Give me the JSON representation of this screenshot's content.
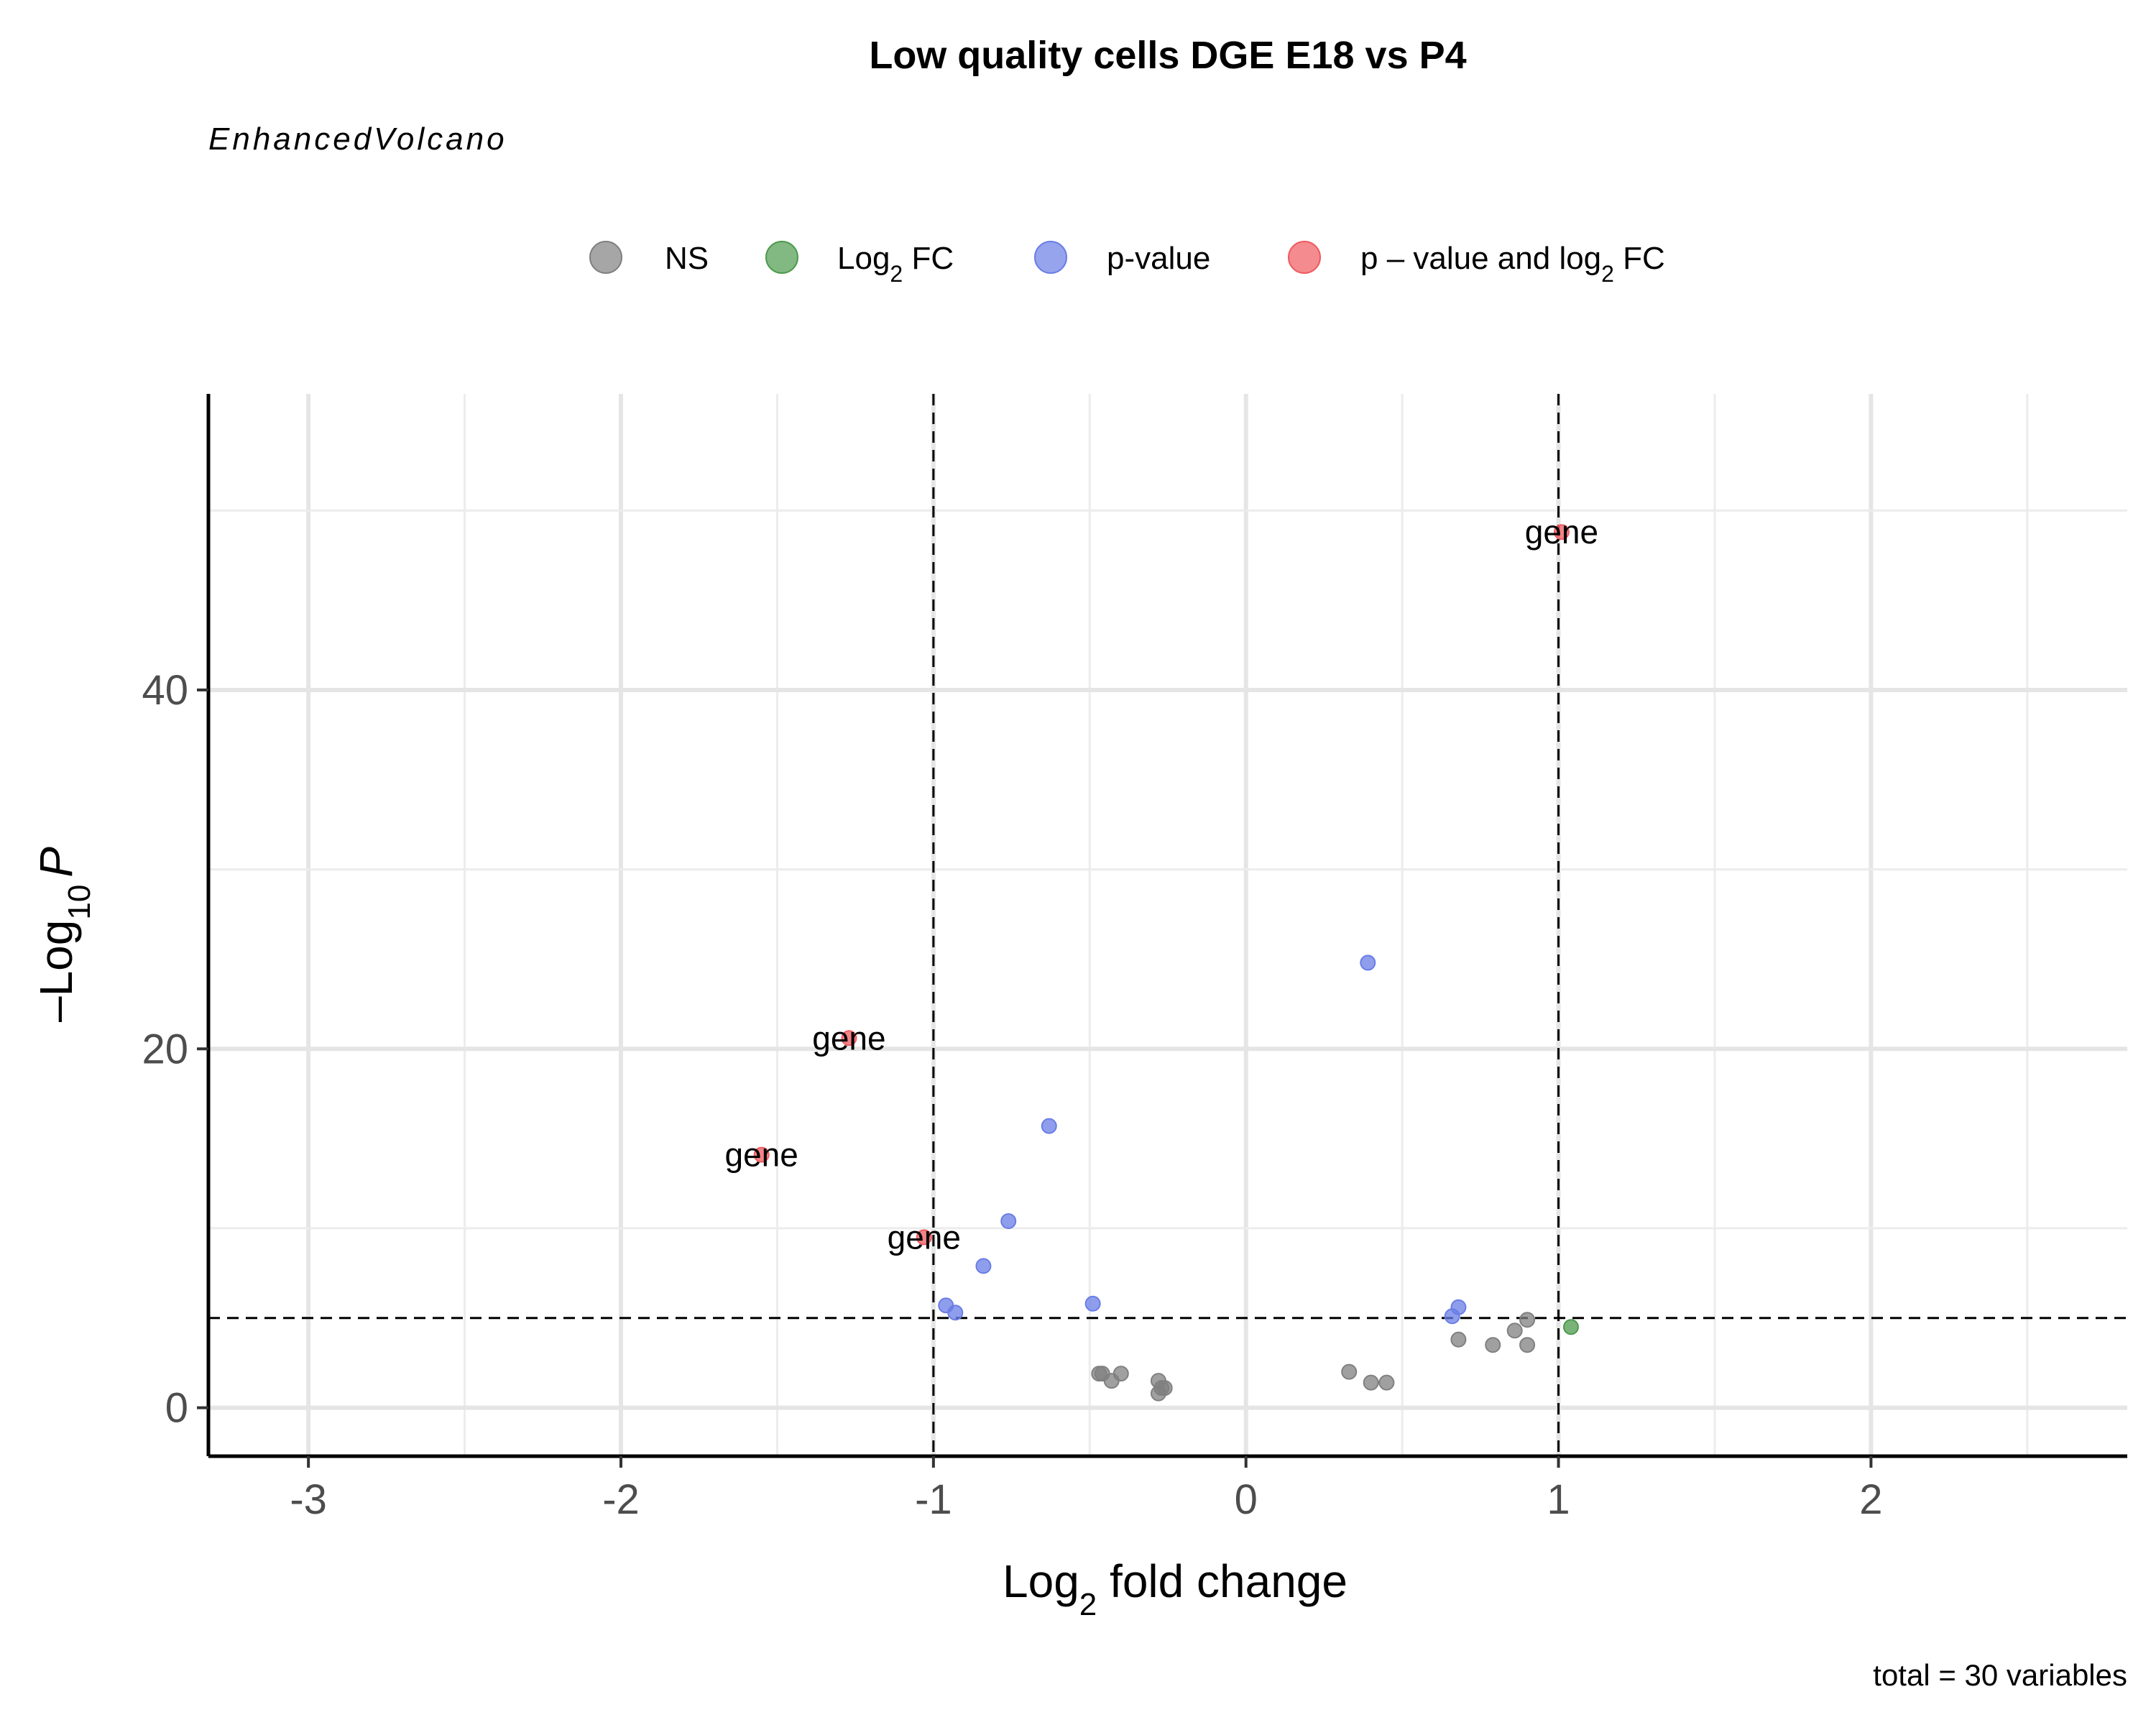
{
  "chart_data": {
    "type": "scatter",
    "title": "Low quality cells DGE E18 vs P4",
    "subtitle": "EnhancedVolcano",
    "caption": "total = 30 variables",
    "xlabel": {
      "prefix": "Log",
      "sub": "2",
      "suffix": " fold change"
    },
    "ylabel": {
      "prefix": "–Log",
      "sub": "10",
      "suffix": "P"
    },
    "xlim": [
      -3.32,
      2.82
    ],
    "ylim": [
      -2.7,
      56.5
    ],
    "x_ticks": [
      -3,
      -2,
      -1,
      0,
      1,
      2
    ],
    "x_tick_labels": [
      "-3",
      "-2",
      "-1",
      "0",
      "1",
      "2"
    ],
    "y_ticks": [
      0,
      20,
      40
    ],
    "y_tick_labels": [
      "0",
      "20",
      "40"
    ],
    "grid": true,
    "legend_position": "top",
    "thresholds": {
      "log2fc": [
        -1,
        1
      ],
      "neg_log10_p": 5
    },
    "legend": [
      {
        "key": "NS",
        "label_parts": [
          "NS"
        ],
        "color": "#808080"
      },
      {
        "key": "FC",
        "label_parts": [
          "Log",
          "2",
          " FC"
        ],
        "color": "#4d9a4d"
      },
      {
        "key": "P",
        "label_parts": [
          "p-value"
        ],
        "color": "#6a7de6"
      },
      {
        "key": "FCP",
        "label_parts": [
          "p – value and log",
          "2",
          " FC"
        ],
        "color": "#ef5a5f"
      }
    ],
    "points": [
      {
        "x": 1.01,
        "y": 48.8,
        "group": "FCP",
        "label": "gene"
      },
      {
        "x": -1.27,
        "y": 20.6,
        "group": "FCP",
        "label": "gene"
      },
      {
        "x": -1.55,
        "y": 14.1,
        "group": "FCP",
        "label": "gene"
      },
      {
        "x": -1.03,
        "y": 9.5,
        "group": "FCP",
        "label": "gene"
      },
      {
        "x": 0.39,
        "y": 24.8,
        "group": "P"
      },
      {
        "x": -0.63,
        "y": 15.7,
        "group": "P"
      },
      {
        "x": -0.76,
        "y": 10.4,
        "group": "P"
      },
      {
        "x": -0.84,
        "y": 7.9,
        "group": "P"
      },
      {
        "x": -0.96,
        "y": 5.7,
        "group": "P"
      },
      {
        "x": -0.93,
        "y": 5.3,
        "group": "P"
      },
      {
        "x": -0.49,
        "y": 5.8,
        "group": "P"
      },
      {
        "x": 0.68,
        "y": 5.6,
        "group": "P"
      },
      {
        "x": 0.66,
        "y": 5.1,
        "group": "P"
      },
      {
        "x": 1.04,
        "y": 4.5,
        "group": "FC"
      },
      {
        "x": 0.9,
        "y": 4.9,
        "group": "NS"
      },
      {
        "x": 0.86,
        "y": 4.3,
        "group": "NS"
      },
      {
        "x": 0.68,
        "y": 3.8,
        "group": "NS"
      },
      {
        "x": 0.79,
        "y": 3.5,
        "group": "NS"
      },
      {
        "x": 0.9,
        "y": 3.5,
        "group": "NS"
      },
      {
        "x": 0.33,
        "y": 2.0,
        "group": "NS"
      },
      {
        "x": 0.4,
        "y": 1.4,
        "group": "NS"
      },
      {
        "x": 0.45,
        "y": 1.4,
        "group": "NS"
      },
      {
        "x": -0.47,
        "y": 1.9,
        "group": "NS"
      },
      {
        "x": -0.46,
        "y": 1.9,
        "group": "NS"
      },
      {
        "x": -0.4,
        "y": 1.9,
        "group": "NS"
      },
      {
        "x": -0.43,
        "y": 1.5,
        "group": "NS"
      },
      {
        "x": -0.28,
        "y": 1.5,
        "group": "NS"
      },
      {
        "x": -0.27,
        "y": 1.1,
        "group": "NS"
      },
      {
        "x": -0.26,
        "y": 1.1,
        "group": "NS"
      },
      {
        "x": -0.28,
        "y": 0.8,
        "group": "NS"
      }
    ]
  }
}
